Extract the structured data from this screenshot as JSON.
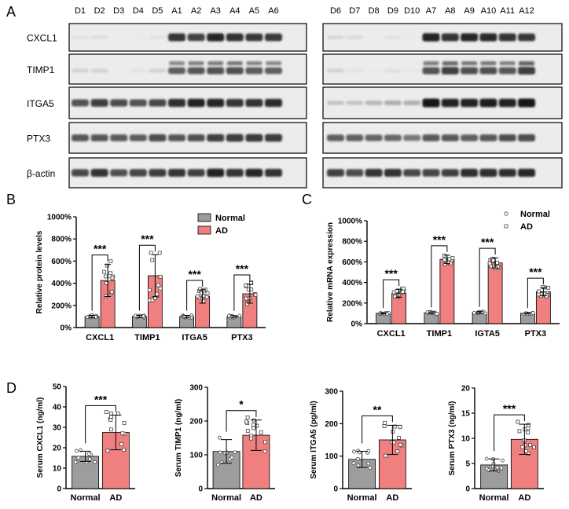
{
  "panel_letters": [
    "A",
    "B",
    "C",
    "D"
  ],
  "western_blot": {
    "proteins": [
      "CXCL1",
      "TIMP1",
      "ITGA5",
      "PTX3",
      "β-actin"
    ],
    "left_lanes": [
      "D1",
      "D2",
      "D3",
      "D4",
      "D5",
      "A1",
      "A2",
      "A3",
      "A4",
      "A5",
      "A6"
    ],
    "right_lanes": [
      "D6",
      "D7",
      "D8",
      "D9",
      "D10",
      "A7",
      "A8",
      "A9",
      "A10",
      "A11",
      "A12"
    ]
  },
  "colors": {
    "normal": "#9d9d9d",
    "ad": "#f08080"
  },
  "chart_data": [
    {
      "id": "B",
      "type": "bar",
      "ylabel": "Relative protein levels",
      "categories": [
        "CXCL1",
        "TIMP1",
        "ITGA5",
        "PTX3"
      ],
      "yticks": [
        "0%",
        "200%",
        "400%",
        "600%",
        "800%",
        "1000%"
      ],
      "ylim": [
        0,
        1000
      ],
      "legend": [
        "Normal",
        "AD"
      ],
      "legend_position": "top-right",
      "series": [
        {
          "name": "Normal",
          "values": [
            100,
            100,
            100,
            100
          ],
          "errors": [
            10,
            10,
            10,
            8
          ]
        },
        {
          "name": "AD",
          "values": [
            425,
            468,
            280,
            305
          ],
          "errors": [
            145,
            190,
            60,
            85
          ]
        }
      ],
      "significance": [
        "***",
        "***",
        "***",
        "***"
      ]
    },
    {
      "id": "C",
      "type": "bar",
      "ylabel": "Relative mRNA expression",
      "categories": [
        "CXCL1",
        "TIMP1",
        "IGTA5",
        "PTX3"
      ],
      "yticks": [
        "0%",
        "200%",
        "400%",
        "600%",
        "800%",
        "1000%"
      ],
      "ylim": [
        0,
        1000
      ],
      "legend": [
        "Normal",
        "AD"
      ],
      "legend_position": "top-right",
      "series": [
        {
          "name": "Normal",
          "values": [
            100,
            105,
            108,
            100
          ],
          "errors": [
            5,
            8,
            8,
            6
          ]
        },
        {
          "name": "AD",
          "values": [
            295,
            625,
            590,
            310
          ],
          "errors": [
            40,
            40,
            50,
            40
          ]
        }
      ],
      "significance": [
        "***",
        "***",
        "***",
        "***"
      ]
    },
    {
      "id": "D1",
      "type": "bar",
      "ylabel": "Serum CXCL1 (ng/ml)",
      "categories": [
        "Normal",
        "AD"
      ],
      "yticks": [
        "0",
        "10",
        "20",
        "30",
        "40",
        "50"
      ],
      "ylim": [
        0,
        50
      ],
      "values": [
        15.8,
        27.5
      ],
      "errors": [
        2.5,
        8.5
      ],
      "significance": "***"
    },
    {
      "id": "D2",
      "type": "bar",
      "ylabel": "Serum TIMP1 (ng/ml)",
      "categories": [
        "Normal",
        "AD"
      ],
      "yticks": [
        "0",
        "100",
        "200",
        "300"
      ],
      "ylim": [
        0,
        300
      ],
      "values": [
        110,
        158
      ],
      "errors": [
        35,
        45
      ],
      "significance": "*"
    },
    {
      "id": "D3",
      "type": "bar",
      "ylabel": "Serum ITGA5 (pg/ml)",
      "categories": [
        "Normal",
        "AD"
      ],
      "yticks": [
        "0",
        "100",
        "200",
        "300"
      ],
      "ylim": [
        0,
        300
      ],
      "values": [
        90,
        150
      ],
      "errors": [
        25,
        45
      ],
      "significance": "**"
    },
    {
      "id": "D4",
      "type": "bar",
      "ylabel": "Serum PTX3 (ng/ml)",
      "categories": [
        "Normal",
        "AD"
      ],
      "yticks": [
        "0",
        "5",
        "10",
        "15",
        "20"
      ],
      "ylim": [
        0,
        20
      ],
      "values": [
        4.7,
        9.8
      ],
      "errors": [
        1.2,
        3
      ],
      "significance": "***"
    }
  ]
}
